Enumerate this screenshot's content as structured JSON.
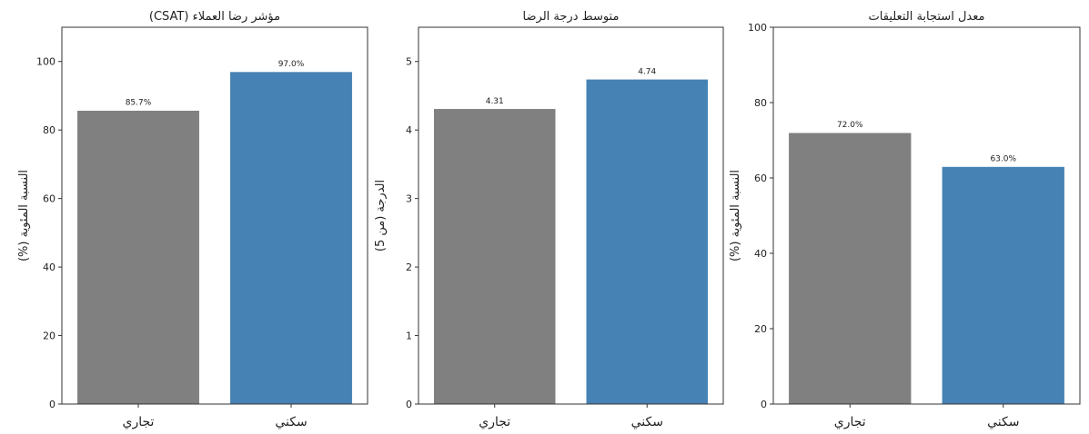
{
  "chart_data": [
    {
      "type": "bar",
      "title": "مؤشر رضا العملاء (CSAT)",
      "ylabel": "النسبة المئوية (%)",
      "categories": [
        "تجاري",
        "سكني"
      ],
      "values": [
        85.7,
        97.0
      ],
      "data_labels": [
        "85.7%",
        "97.0%"
      ],
      "ylim": [
        0,
        110
      ],
      "yticks": [
        0,
        20,
        40,
        60,
        80,
        100
      ],
      "ytick_labels": [
        "0",
        "20",
        "40",
        "60",
        "80",
        "100"
      ],
      "bar_colors": [
        "#808080",
        "#4682B4"
      ],
      "grid": false
    },
    {
      "type": "bar",
      "title": "متوسط درجة الرضا",
      "ylabel": "الدرجة (من 5)",
      "categories": [
        "تجاري",
        "سكني"
      ],
      "values": [
        4.31,
        4.74
      ],
      "data_labels": [
        "4.31",
        "4.74"
      ],
      "ylim": [
        0,
        5.5
      ],
      "yticks": [
        0,
        1,
        2,
        3,
        4,
        5
      ],
      "ytick_labels": [
        "0",
        "1",
        "2",
        "3",
        "4",
        "5"
      ],
      "bar_colors": [
        "#808080",
        "#4682B4"
      ],
      "grid": false
    },
    {
      "type": "bar",
      "title": "معدل استجابة التعليقات",
      "ylabel": "النسبة المئوية (%)",
      "categories": [
        "تجاري",
        "سكني"
      ],
      "values": [
        72.0,
        63.0
      ],
      "data_labels": [
        "72.0%",
        "63.0%"
      ],
      "ylim": [
        0,
        100
      ],
      "yticks": [
        0,
        20,
        40,
        60,
        80,
        100
      ],
      "ytick_labels": [
        "0",
        "20",
        "40",
        "60",
        "80",
        "100"
      ],
      "bar_colors": [
        "#808080",
        "#4682B4"
      ],
      "grid": false
    }
  ]
}
